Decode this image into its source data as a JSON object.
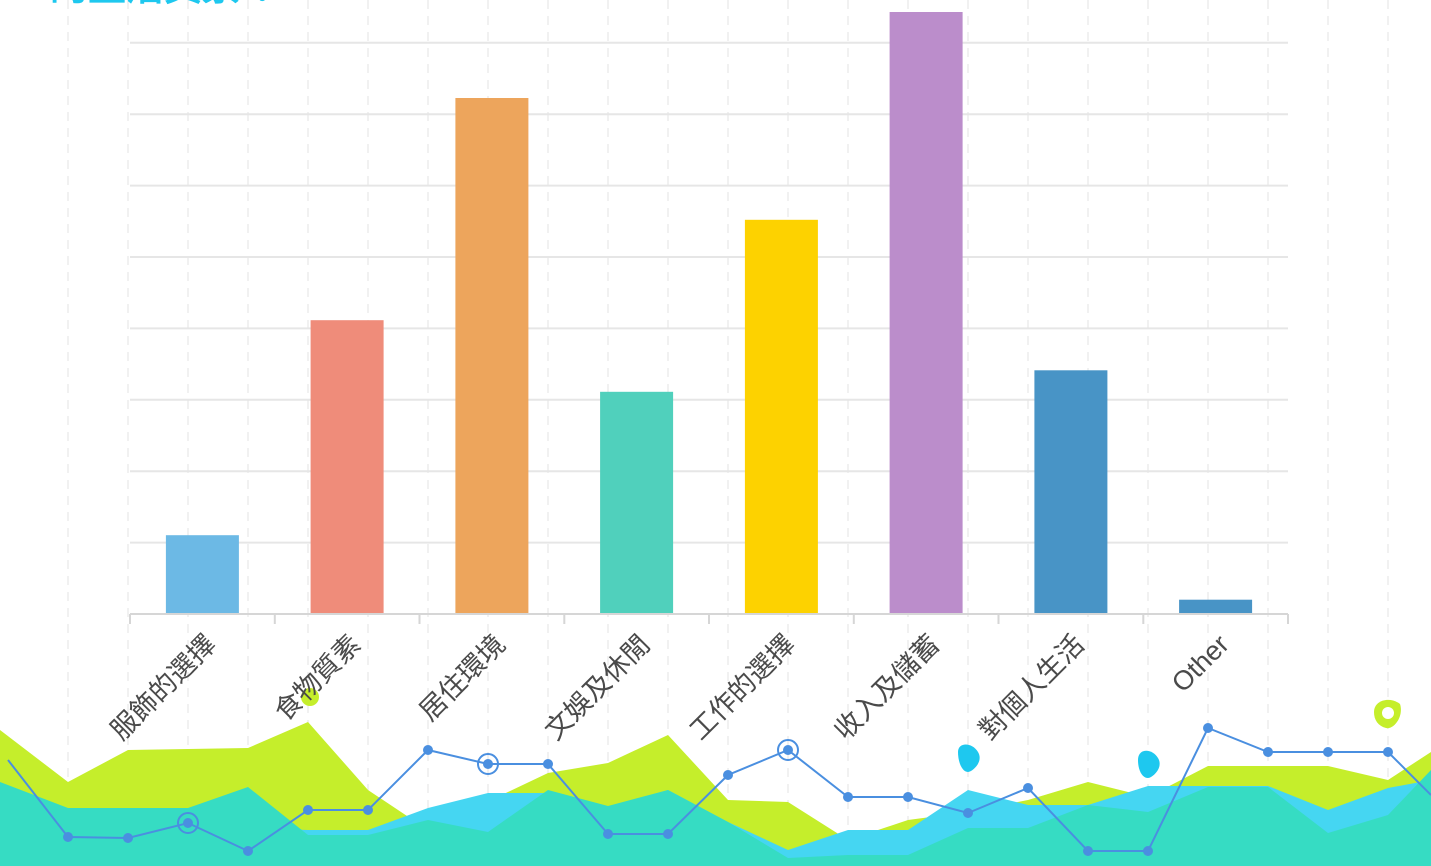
{
  "title": "的生活質素 ？",
  "chart_data": {
    "type": "bar",
    "title": "的生活質素 ？",
    "categories": [
      "服飾的選擇",
      "食物質素",
      "居住環境",
      "文娛及休閒",
      "工作的選擇",
      "收入及儲蓄",
      "對個人生活",
      "Other"
    ],
    "values": [
      11,
      41,
      72,
      31,
      55,
      84,
      34,
      2
    ],
    "colors": [
      "#6cb9e5",
      "#ef8c7a",
      "#eda55c",
      "#50d0bc",
      "#fdd200",
      "#bb8dcb",
      "#4894c6",
      "#4894c6"
    ],
    "ylim": [
      0,
      84
    ],
    "grid": true,
    "legend": "none"
  }
}
